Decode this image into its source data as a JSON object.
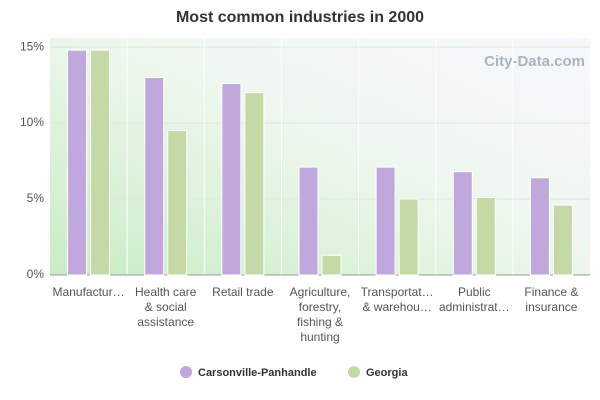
{
  "chart_data": {
    "type": "bar",
    "title": "Most common industries in 2000",
    "categories": [
      "Manufactur…",
      "Health care\n& social\nassistance",
      "Retail trade",
      "Agriculture,\nforestry,\nfishing &\nhunting",
      "Transportat…\n& warehou…",
      "Public\nadministrat…",
      "Finance &\ninsurance"
    ],
    "series": [
      {
        "name": "Carsonville-Panhandle",
        "color": "#c0a8dc",
        "values": [
          14.8,
          13.0,
          12.6,
          7.1,
          7.1,
          6.8,
          6.4
        ]
      },
      {
        "name": "Georgia",
        "color": "#c4d9a6",
        "values": [
          14.8,
          9.5,
          12.0,
          1.3,
          5.0,
          5.1,
          4.6
        ]
      }
    ],
    "ylim": [
      0,
      15.6
    ],
    "yticks": [
      {
        "value": 0,
        "label": "0%"
      },
      {
        "value": 5,
        "label": "5%"
      },
      {
        "value": 10,
        "label": "10%"
      },
      {
        "value": 15,
        "label": "15%"
      }
    ],
    "grid": true,
    "watermark": "City-Data.com"
  }
}
